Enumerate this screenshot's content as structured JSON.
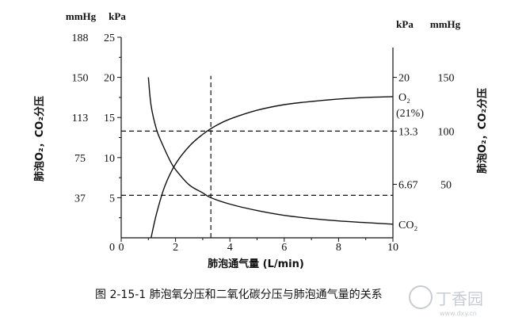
{
  "chart_data": {
    "type": "line",
    "xlabel": "肺泡通气量 (L/min)",
    "x_ticks": [
      "0",
      "2",
      "4",
      "6",
      "8",
      "10"
    ],
    "xlim": [
      0,
      10
    ],
    "left_units": {
      "mmhg": "mmHg",
      "kpa": "kPa"
    },
    "right_units": {
      "kpa": "kPa",
      "mmhg": "mmHg"
    },
    "ylim_kpa": [
      0,
      25
    ],
    "left_kpa_ticks": [
      {
        "value": 0,
        "label": "0"
      },
      {
        "value": 5,
        "label": "5"
      },
      {
        "value": 10,
        "label": "10"
      },
      {
        "value": 15,
        "label": "15"
      },
      {
        "value": 20,
        "label": "20"
      },
      {
        "value": 25,
        "label": "25"
      }
    ],
    "left_mmhg_ticks": [
      {
        "value": 5,
        "label": "37"
      },
      {
        "value": 10,
        "label": "75"
      },
      {
        "value": 15,
        "label": "113"
      },
      {
        "value": 20,
        "label": "150"
      },
      {
        "value": 25,
        "label": "188"
      }
    ],
    "right_kpa_ticks": [
      {
        "value": 20,
        "label": "20"
      },
      {
        "value": 13.3,
        "label": "13.3"
      },
      {
        "value": 6.67,
        "label": "6.67"
      }
    ],
    "right_mmhg_ticks": [
      {
        "value": 20,
        "label": "150"
      },
      {
        "value": 13.3,
        "label": "100"
      },
      {
        "value": 6.67,
        "label": "50"
      }
    ],
    "left_ylabel": "肺泡O₂，CO₂分压",
    "right_ylabel": "肺泡O₂，CO₂分压",
    "series": [
      {
        "name": "O₂",
        "name_line2": "(21%)",
        "x": [
          1.1,
          1.3,
          1.6,
          2.0,
          2.5,
          3.0,
          3.5,
          4.0,
          5.0,
          6.0,
          7.0,
          8.0,
          9.0,
          10.0
        ],
        "y": [
          0,
          3.0,
          6.4,
          9.2,
          11.4,
          12.9,
          14.0,
          14.8,
          15.9,
          16.6,
          17.0,
          17.3,
          17.5,
          17.6
        ]
      },
      {
        "name": "CO₂",
        "x": [
          1.0,
          1.1,
          1.3,
          1.5,
          1.8,
          2.0,
          2.5,
          3.0,
          3.3,
          4.0,
          5.0,
          6.0,
          7.0,
          8.0,
          9.0,
          10.0
        ],
        "y": [
          20.0,
          16.5,
          13.5,
          11.8,
          9.6,
          8.5,
          6.6,
          5.6,
          5.0,
          4.2,
          3.4,
          2.8,
          2.4,
          2.1,
          1.9,
          1.7
        ]
      }
    ],
    "reference_lines": {
      "vertical_x": 3.3,
      "horizontal_y": [
        13.3,
        5.3
      ]
    },
    "caption": "图 2-15-1   肺泡氧分压和二氧化碳分压与肺泡通气量的关系"
  },
  "watermark": {
    "text": "丁香园",
    "sub": "www.dxy.cn"
  }
}
